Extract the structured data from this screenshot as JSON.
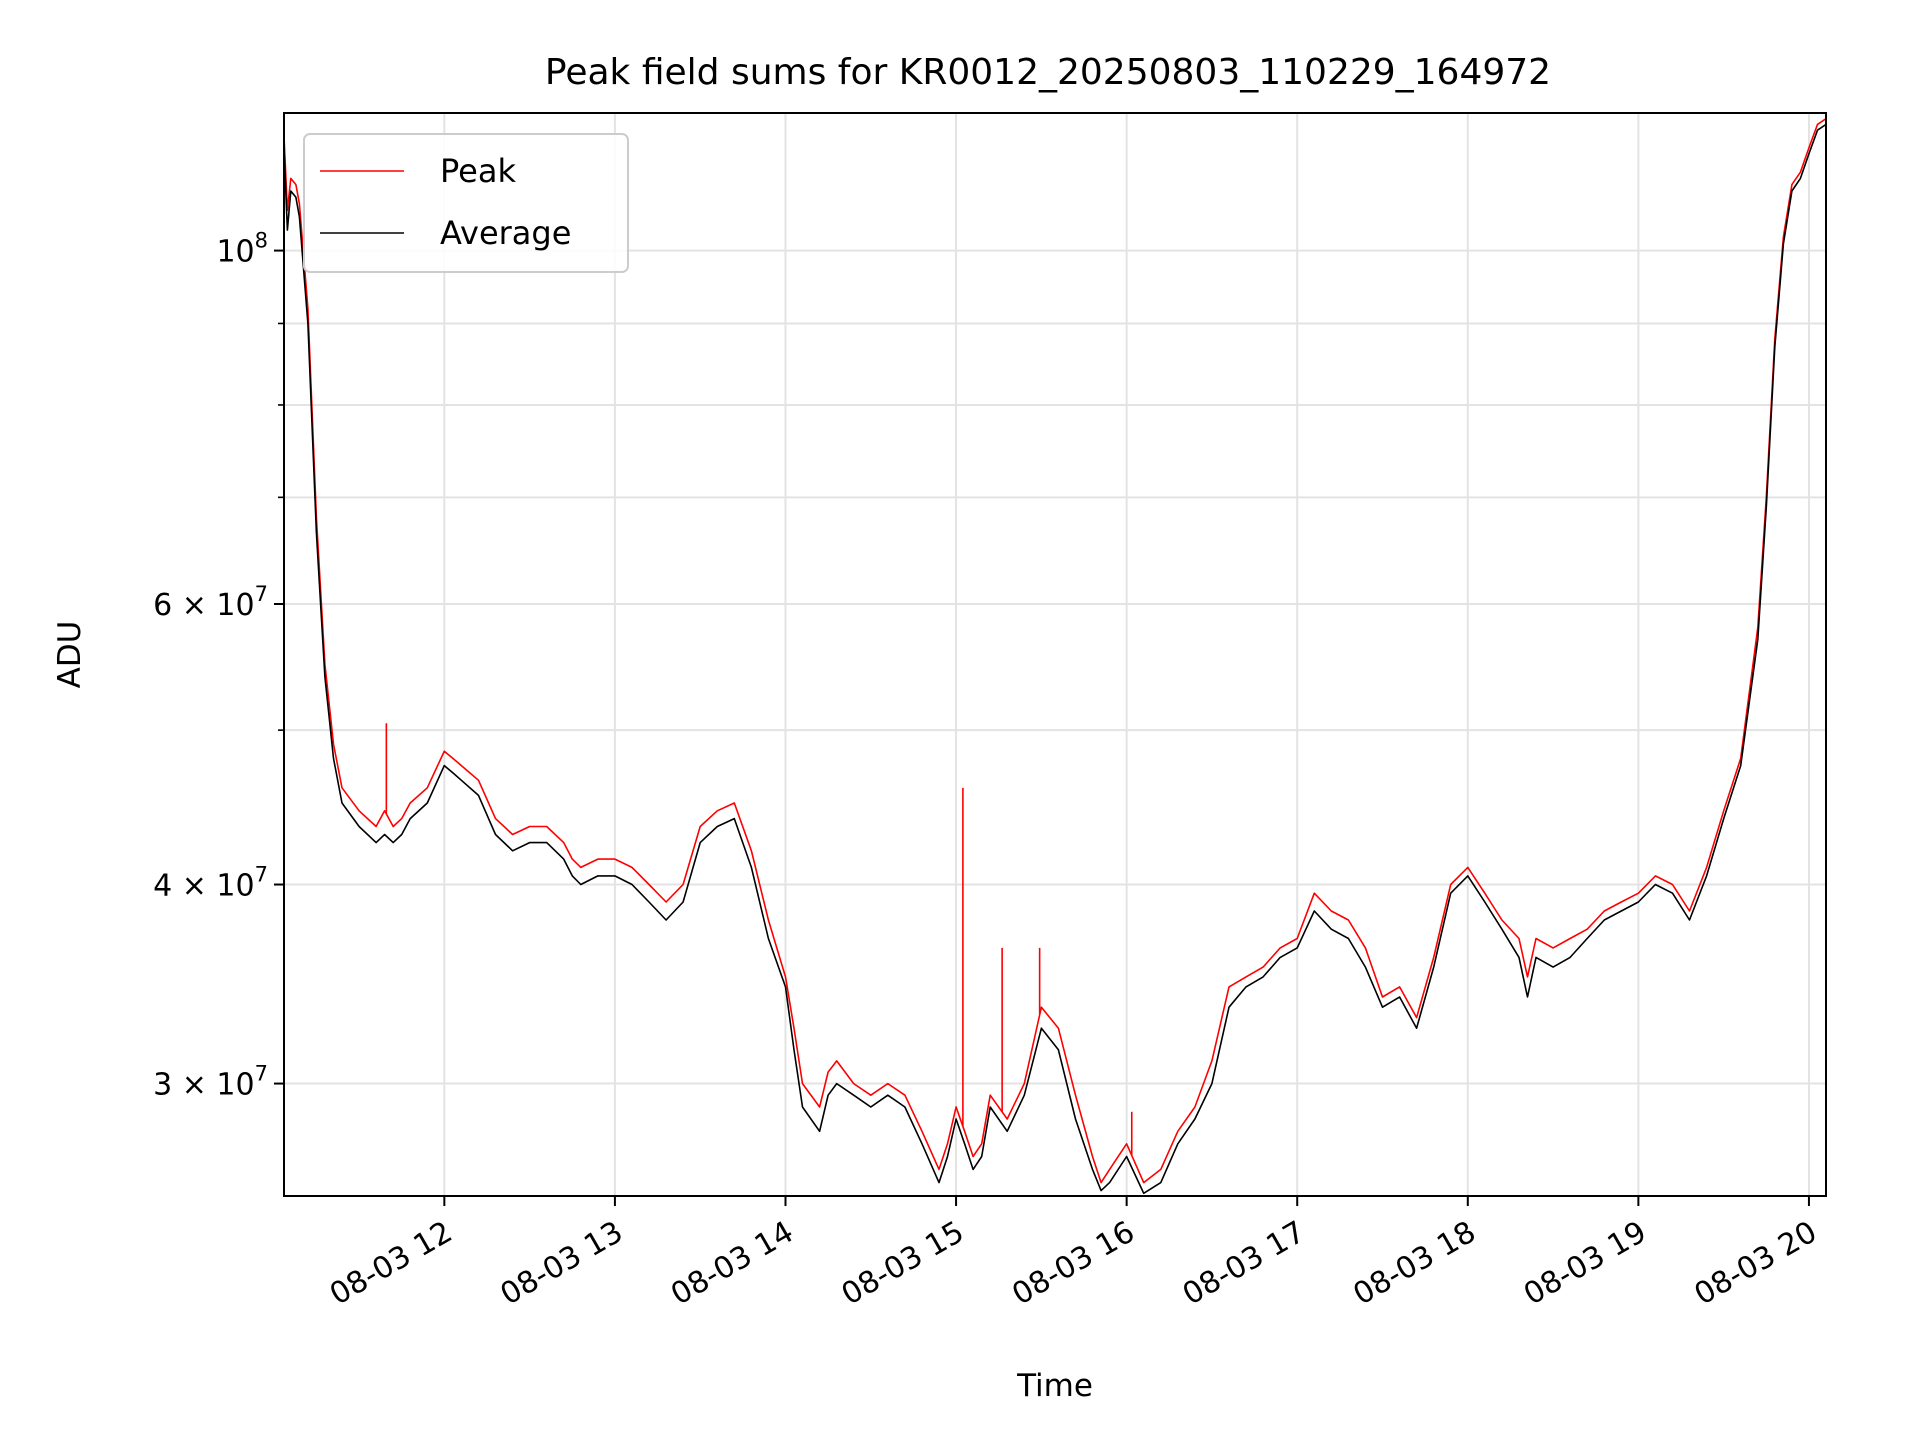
{
  "chart_data": {
    "type": "line",
    "title": "Peak field sums for KR0012_20250803_110229_164972",
    "xlabel": "Time",
    "ylabel": "ADU",
    "x_axis": "time (hours on 08-03)",
    "xlim": [
      11.06,
      20.1
    ],
    "ylim": [
      25500000,
      122000000
    ],
    "yscale": "log",
    "grid": true,
    "legend_position": "upper-left",
    "x_ticks": [
      {
        "value": 12,
        "label": "08-03 12"
      },
      {
        "value": 13,
        "label": "08-03 13"
      },
      {
        "value": 14,
        "label": "08-03 14"
      },
      {
        "value": 15,
        "label": "08-03 15"
      },
      {
        "value": 16,
        "label": "08-03 16"
      },
      {
        "value": 17,
        "label": "08-03 17"
      },
      {
        "value": 18,
        "label": "08-03 18"
      },
      {
        "value": 19,
        "label": "08-03 19"
      },
      {
        "value": 20,
        "label": "08-03 20"
      }
    ],
    "y_ticks": [
      {
        "value": 30000000,
        "mantissa": "3",
        "exponent": "7"
      },
      {
        "value": 40000000,
        "mantissa": "4",
        "exponent": "7"
      },
      {
        "value": 60000000,
        "mantissa": "6",
        "exponent": "7"
      },
      {
        "value": 100000000,
        "mantissa": "",
        "exponent": "8"
      }
    ],
    "y_minor_ticks": [
      50000000,
      70000000,
      80000000,
      90000000
    ],
    "series": [
      {
        "name": "Peak",
        "color": "#ff0000",
        "x": [
          11.06,
          11.08,
          11.1,
          11.13,
          11.15,
          11.2,
          11.25,
          11.3,
          11.35,
          11.4,
          11.5,
          11.6,
          11.65,
          11.7,
          11.75,
          11.8,
          11.9,
          12.0,
          12.05,
          12.1,
          12.2,
          12.3,
          12.4,
          12.5,
          12.6,
          12.7,
          12.75,
          12.8,
          12.9,
          13.0,
          13.1,
          13.2,
          13.3,
          13.4,
          13.5,
          13.6,
          13.7,
          13.8,
          13.9,
          14.0,
          14.05,
          14.1,
          14.2,
          14.25,
          14.3,
          14.4,
          14.5,
          14.6,
          14.7,
          14.8,
          14.9,
          14.95,
          15.0,
          15.05,
          15.1,
          15.15,
          15.2,
          15.3,
          15.4,
          15.5,
          15.6,
          15.7,
          15.8,
          15.85,
          15.9,
          16.0,
          16.1,
          16.2,
          16.3,
          16.4,
          16.5,
          16.6,
          16.7,
          16.8,
          16.9,
          17.0,
          17.1,
          17.2,
          17.3,
          17.4,
          17.5,
          17.6,
          17.7,
          17.8,
          17.9,
          18.0,
          18.1,
          18.2,
          18.3,
          18.35,
          18.4,
          18.5,
          18.6,
          18.7,
          18.8,
          18.9,
          19.0,
          19.1,
          19.2,
          19.3,
          19.4,
          19.5,
          19.6,
          19.7,
          19.75,
          19.8,
          19.85,
          19.9,
          19.95,
          20.0,
          20.05,
          20.1
        ],
        "values": [
          118000000,
          106000000,
          111000000,
          110000000,
          107000000,
          92000000,
          68000000,
          55000000,
          49000000,
          46000000,
          44500000,
          43500000,
          44500000,
          43500000,
          44000000,
          45000000,
          46000000,
          48500000,
          48000000,
          47500000,
          46500000,
          44000000,
          43000000,
          43500000,
          43500000,
          42500000,
          41500000,
          41000000,
          41500000,
          41500000,
          41000000,
          40000000,
          39000000,
          40000000,
          43500000,
          44500000,
          45000000,
          42000000,
          38000000,
          35000000,
          32500000,
          30000000,
          29000000,
          30500000,
          31000000,
          30000000,
          29500000,
          30000000,
          29500000,
          28000000,
          26500000,
          27500000,
          29000000,
          28000000,
          27000000,
          27500000,
          29500000,
          28500000,
          30000000,
          33500000,
          32500000,
          29500000,
          27000000,
          26000000,
          26500000,
          27500000,
          26000000,
          26500000,
          28000000,
          29000000,
          31000000,
          34500000,
          35000000,
          35500000,
          36500000,
          37000000,
          39500000,
          38500000,
          38000000,
          36500000,
          34000000,
          34500000,
          33000000,
          36000000,
          40000000,
          41000000,
          39500000,
          38000000,
          37000000,
          35000000,
          37000000,
          36500000,
          37000000,
          37500000,
          38500000,
          39000000,
          39500000,
          40500000,
          40000000,
          38500000,
          41000000,
          44500000,
          48000000,
          58000000,
          70000000,
          88000000,
          102000000,
          110000000,
          112000000,
          116000000,
          120000000,
          121000000
        ],
        "spikes": [
          {
            "x": 11.66,
            "y": 50500000
          },
          {
            "x": 15.04,
            "y": 46000000
          },
          {
            "x": 15.27,
            "y": 36500000
          },
          {
            "x": 15.49,
            "y": 36500000
          },
          {
            "x": 16.03,
            "y": 28800000
          }
        ]
      },
      {
        "name": "Average",
        "color": "#000000",
        "x": [
          11.06,
          11.08,
          11.1,
          11.13,
          11.15,
          11.2,
          11.25,
          11.3,
          11.35,
          11.4,
          11.5,
          11.6,
          11.65,
          11.7,
          11.75,
          11.8,
          11.9,
          12.0,
          12.05,
          12.1,
          12.2,
          12.3,
          12.4,
          12.5,
          12.6,
          12.7,
          12.75,
          12.8,
          12.9,
          13.0,
          13.1,
          13.2,
          13.3,
          13.4,
          13.5,
          13.6,
          13.7,
          13.8,
          13.9,
          14.0,
          14.05,
          14.1,
          14.2,
          14.25,
          14.3,
          14.4,
          14.5,
          14.6,
          14.7,
          14.8,
          14.9,
          14.95,
          15.0,
          15.05,
          15.1,
          15.15,
          15.2,
          15.3,
          15.4,
          15.5,
          15.6,
          15.7,
          15.8,
          15.85,
          15.9,
          16.0,
          16.1,
          16.2,
          16.3,
          16.4,
          16.5,
          16.6,
          16.7,
          16.8,
          16.9,
          17.0,
          17.1,
          17.2,
          17.3,
          17.4,
          17.5,
          17.6,
          17.7,
          17.8,
          17.9,
          18.0,
          18.1,
          18.2,
          18.3,
          18.35,
          18.4,
          18.5,
          18.6,
          18.7,
          18.8,
          18.9,
          19.0,
          19.1,
          19.2,
          19.3,
          19.4,
          19.5,
          19.6,
          19.7,
          19.75,
          19.8,
          19.85,
          19.9,
          19.95,
          20.0,
          20.05,
          20.1
        ],
        "values": [
          116000000,
          103000000,
          109000000,
          108000000,
          105000000,
          90000000,
          66500000,
          54000000,
          48000000,
          45000000,
          43500000,
          42500000,
          43000000,
          42500000,
          43000000,
          44000000,
          45000000,
          47500000,
          47000000,
          46500000,
          45500000,
          43000000,
          42000000,
          42500000,
          42500000,
          41500000,
          40500000,
          40000000,
          40500000,
          40500000,
          40000000,
          39000000,
          38000000,
          39000000,
          42500000,
          43500000,
          44000000,
          41000000,
          37000000,
          34500000,
          31500000,
          29000000,
          28000000,
          29500000,
          30000000,
          29500000,
          29000000,
          29500000,
          29000000,
          27500000,
          26000000,
          27000000,
          28500000,
          27500000,
          26500000,
          27000000,
          29000000,
          28000000,
          29500000,
          32500000,
          31500000,
          28500000,
          26500000,
          25700000,
          26000000,
          27000000,
          25600000,
          26000000,
          27500000,
          28500000,
          30000000,
          33500000,
          34500000,
          35000000,
          36000000,
          36500000,
          38500000,
          37500000,
          37000000,
          35500000,
          33500000,
          34000000,
          32500000,
          35500000,
          39500000,
          40500000,
          39000000,
          37500000,
          36000000,
          34000000,
          36000000,
          35500000,
          36000000,
          37000000,
          38000000,
          38500000,
          39000000,
          40000000,
          39500000,
          38000000,
          40500000,
          44000000,
          47500000,
          57000000,
          69000000,
          87000000,
          101000000,
          109000000,
          111000000,
          115000000,
          119000000,
          120000000
        ]
      }
    ]
  }
}
